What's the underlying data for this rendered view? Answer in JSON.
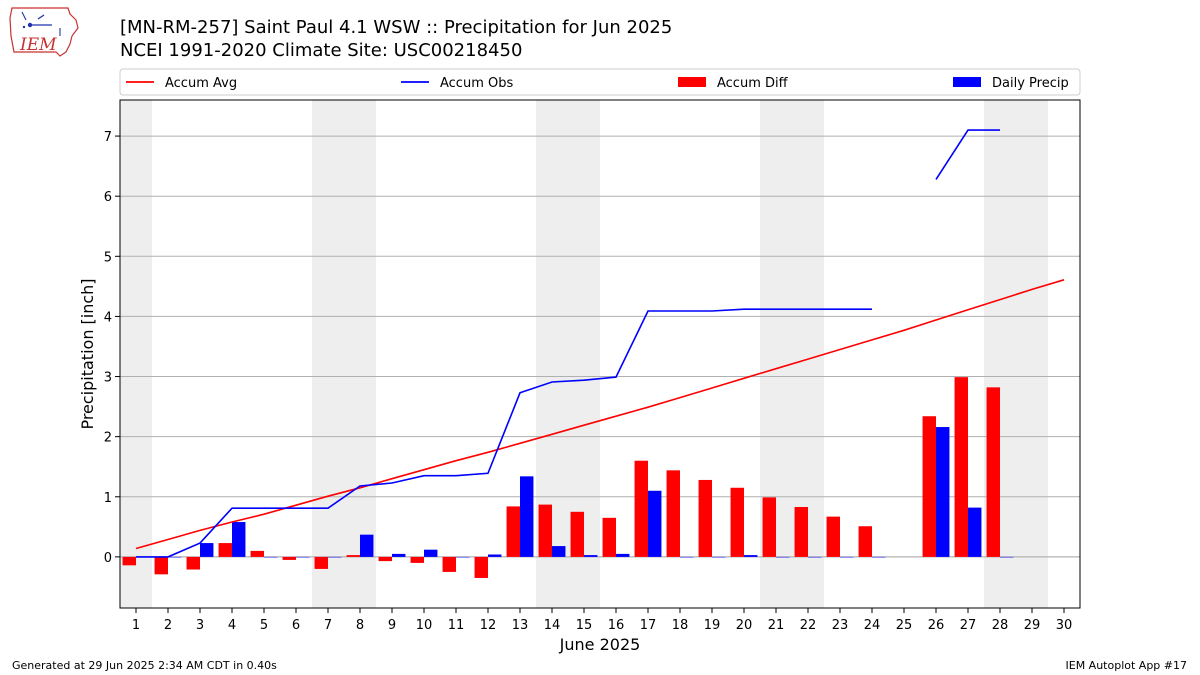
{
  "logo": {
    "text": "IEM",
    "icon": "iowa-state-outline-logo"
  },
  "title": "[MN-RM-257] Saint Paul 4.1 WSW :: Precipitation for Jun 2025",
  "subtitle": "NCEI 1991-2020 Climate Site: USC00218450",
  "footer": {
    "left": "Generated at 29 Jun 2025 2:34 AM CDT in 0.40s",
    "right": "IEM Autoplot App #17"
  },
  "chart_data": {
    "type": "bar",
    "xlabel": "June 2025",
    "ylabel": "Precipitation [inch]",
    "xlim": [
      0.5,
      30.5
    ],
    "ylim": [
      -0.85,
      7.6
    ],
    "x_ticks": [
      1,
      2,
      3,
      4,
      5,
      6,
      7,
      8,
      9,
      10,
      11,
      12,
      13,
      14,
      15,
      16,
      17,
      18,
      19,
      20,
      21,
      22,
      23,
      24,
      25,
      26,
      27,
      28,
      29,
      30
    ],
    "y_ticks": [
      0,
      1,
      2,
      3,
      4,
      5,
      6,
      7
    ],
    "grid": "horizontal",
    "legend_position": "top",
    "weekend_shading": [
      [
        1,
        1
      ],
      [
        7,
        8
      ],
      [
        14,
        15
      ],
      [
        21,
        22
      ],
      [
        28,
        29
      ]
    ],
    "colors": {
      "accum_avg": "#ff0000",
      "accum_obs": "#0000ff",
      "accum_diff": "#ff0000",
      "daily_precip": "#0000ff",
      "weekend": "#eeeeee",
      "grid": "#b0b0b0"
    },
    "series": [
      {
        "name": "Accum Avg",
        "kind": "line",
        "color": "#ff0000",
        "x": [
          1,
          2,
          3,
          4,
          5,
          6,
          7,
          8,
          9,
          10,
          11,
          12,
          13,
          14,
          15,
          16,
          17,
          18,
          19,
          20,
          21,
          22,
          23,
          24,
          25,
          26,
          27,
          28,
          29,
          30
        ],
        "values": [
          0.14,
          0.29,
          0.44,
          0.58,
          0.71,
          0.86,
          1.01,
          1.15,
          1.3,
          1.45,
          1.6,
          1.74,
          1.89,
          2.04,
          2.19,
          2.34,
          2.49,
          2.65,
          2.81,
          2.97,
          3.13,
          3.29,
          3.45,
          3.61,
          3.77,
          3.94,
          4.11,
          4.28,
          4.45,
          4.61
        ]
      },
      {
        "name": "Accum Obs",
        "kind": "line",
        "color": "#0000ff",
        "x": [
          1,
          2,
          3,
          4,
          5,
          6,
          7,
          8,
          9,
          10,
          11,
          12,
          13,
          14,
          15,
          16,
          17,
          18,
          19,
          20,
          21,
          22,
          23,
          24,
          25,
          26,
          27,
          28
        ],
        "values": [
          0.0,
          0.0,
          0.23,
          0.81,
          0.81,
          0.81,
          0.81,
          1.18,
          1.23,
          1.35,
          1.35,
          1.39,
          2.73,
          2.91,
          2.94,
          2.99,
          4.09,
          4.09,
          4.09,
          4.12,
          4.12,
          4.12,
          4.12,
          4.12,
          null,
          6.28,
          7.1,
          7.1
        ]
      },
      {
        "name": "Accum Diff",
        "kind": "bar",
        "color": "#ff0000",
        "x": [
          1,
          2,
          3,
          4,
          5,
          6,
          7,
          8,
          9,
          10,
          11,
          12,
          13,
          14,
          15,
          16,
          17,
          18,
          19,
          20,
          21,
          22,
          23,
          24,
          25,
          26,
          27,
          28
        ],
        "values": [
          -0.14,
          -0.29,
          -0.21,
          0.23,
          0.1,
          -0.05,
          -0.2,
          0.03,
          -0.07,
          -0.1,
          -0.25,
          -0.35,
          0.84,
          0.87,
          0.75,
          0.65,
          1.6,
          1.44,
          1.28,
          1.15,
          0.99,
          0.83,
          0.67,
          0.51,
          null,
          2.34,
          2.99,
          2.82
        ]
      },
      {
        "name": "Daily Precip",
        "kind": "bar",
        "color": "#0000ff",
        "x": [
          1,
          2,
          3,
          4,
          5,
          6,
          7,
          8,
          9,
          10,
          11,
          12,
          13,
          14,
          15,
          16,
          17,
          18,
          19,
          20,
          21,
          22,
          23,
          24,
          25,
          26,
          27,
          28
        ],
        "values": [
          0.0,
          0.0,
          0.23,
          0.58,
          0.0,
          0.0,
          0.0,
          0.37,
          0.05,
          0.12,
          0.0,
          0.04,
          1.34,
          0.18,
          0.03,
          0.05,
          1.1,
          0.0,
          0.0,
          0.03,
          0.0,
          0.0,
          0.0,
          0.0,
          null,
          2.16,
          0.82,
          0.0
        ]
      }
    ]
  }
}
